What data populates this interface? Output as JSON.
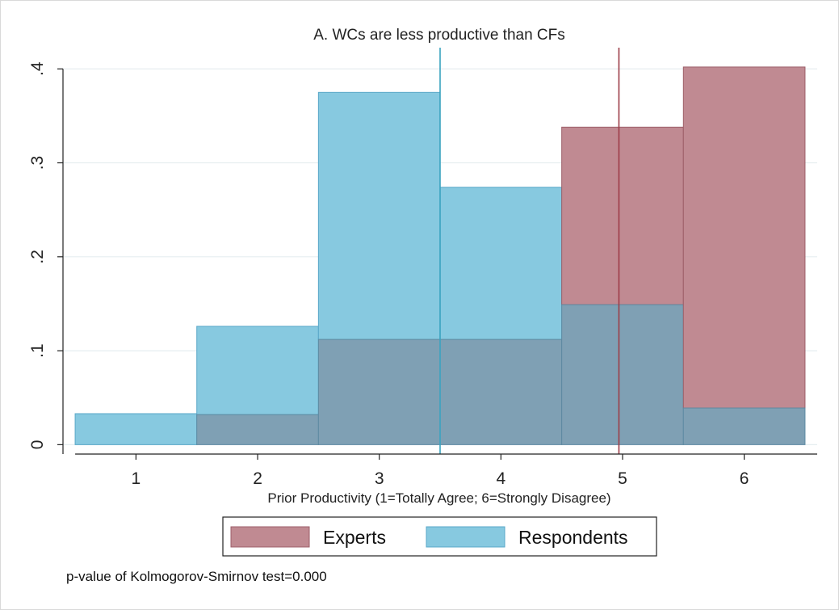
{
  "chart_data": {
    "type": "bar",
    "title": "A. WCs are less productive than CFs",
    "xlabel": "Prior Productivity (1=Totally Agree; 6=Strongly Disagree)",
    "ylabel": "",
    "categories": [
      "1",
      "2",
      "3",
      "4",
      "5",
      "6"
    ],
    "x": [
      1,
      2,
      3,
      4,
      5,
      6
    ],
    "xlim": [
      0.4,
      6.6
    ],
    "ylim": [
      -0.01,
      0.42
    ],
    "yticks": [
      0,
      0.1,
      0.2,
      0.3,
      0.4
    ],
    "ytick_labels": [
      "0",
      ".1",
      ".2",
      ".3",
      ".4"
    ],
    "grid": true,
    "legend_position": "bottom",
    "series": [
      {
        "name": "Experts",
        "values": [
          0,
          0.032,
          0.112,
          0.112,
          0.338,
          0.402
        ],
        "color": "#c08a92",
        "edge": "#9c5e68",
        "mean": 4.97,
        "mean_line_color": "#9c3d48"
      },
      {
        "name": "Respondents",
        "values": [
          0.033,
          0.126,
          0.375,
          0.274,
          0.149,
          0.039
        ],
        "color": "#87c9e0",
        "edge": "#5aa8c8",
        "mean": 3.5,
        "mean_line_color": "#3aa3c0"
      }
    ],
    "overlap_color": "#7fa0b4",
    "annotation": "p-value of Kolmogorov-Smirnov test=0.000"
  }
}
